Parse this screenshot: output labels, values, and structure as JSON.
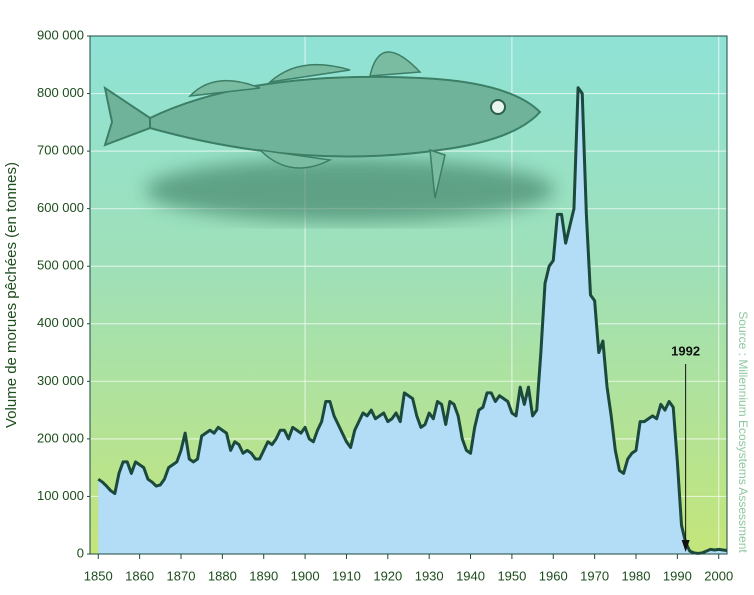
{
  "chart_data": {
    "type": "area",
    "y_label": "Volume de morues pêchées (en tonnes)",
    "source": "Source : Millennium Ecosystems Assessment",
    "annotation": {
      "x": 1992
    },
    "color": "#b3dcf6",
    "line_color": "#1b4a3c",
    "grid": true,
    "xlim": [
      1848,
      2002
    ],
    "ylim": [
      0,
      900000
    ],
    "xticks": [
      1850,
      1860,
      1870,
      1880,
      1890,
      1900,
      1910,
      1920,
      1930,
      1940,
      1950,
      1960,
      1970,
      1980,
      1990,
      2000
    ],
    "yticks": [
      0,
      {
        "value": 100000,
        "label": "100 000"
      },
      {
        "value": 200000,
        "label": "200 000"
      },
      {
        "value": 300000,
        "label": "300 000"
      },
      {
        "value": 400000,
        "label": "400 000"
      },
      {
        "value": 500000,
        "label": "500 000"
      },
      {
        "value": 600000,
        "label": "600 000"
      },
      {
        "value": 700000,
        "label": "700 000"
      },
      {
        "value": 800000,
        "label": "800 000"
      },
      {
        "value": 900000,
        "label": "900 000"
      }
    ],
    "x": [
      1850,
      1851,
      1852,
      1853,
      1854,
      1855,
      1856,
      1857,
      1858,
      1859,
      1860,
      1861,
      1862,
      1863,
      1864,
      1865,
      1866,
      1867,
      1868,
      1869,
      1870,
      1871,
      1872,
      1873,
      1874,
      1875,
      1876,
      1877,
      1878,
      1879,
      1880,
      1881,
      1882,
      1883,
      1884,
      1885,
      1886,
      1887,
      1888,
      1889,
      1890,
      1891,
      1892,
      1893,
      1894,
      1895,
      1896,
      1897,
      1898,
      1899,
      1900,
      1901,
      1902,
      1903,
      1904,
      1905,
      1906,
      1907,
      1908,
      1909,
      1910,
      1911,
      1912,
      1913,
      1914,
      1915,
      1916,
      1917,
      1918,
      1919,
      1920,
      1921,
      1922,
      1923,
      1924,
      1925,
      1926,
      1927,
      1928,
      1929,
      1930,
      1931,
      1932,
      1933,
      1934,
      1935,
      1936,
      1937,
      1938,
      1939,
      1940,
      1941,
      1942,
      1943,
      1944,
      1945,
      1946,
      1947,
      1948,
      1949,
      1950,
      1951,
      1952,
      1953,
      1954,
      1955,
      1956,
      1957,
      1958,
      1959,
      1960,
      1961,
      1962,
      1963,
      1964,
      1965,
      1966,
      1967,
      1968,
      1969,
      1970,
      1971,
      1972,
      1973,
      1974,
      1975,
      1976,
      1977,
      1978,
      1979,
      1980,
      1981,
      1982,
      1983,
      1984,
      1985,
      1986,
      1987,
      1988,
      1989,
      1990,
      1991,
      1992,
      1993,
      1994,
      1995,
      1996,
      1997,
      1998,
      1999,
      2000,
      2001,
      2002
    ],
    "values": [
      130000,
      125000,
      118000,
      110000,
      105000,
      140000,
      160000,
      160000,
      140000,
      160000,
      155000,
      150000,
      130000,
      125000,
      118000,
      120000,
      130000,
      150000,
      155000,
      160000,
      180000,
      210000,
      165000,
      160000,
      165000,
      205000,
      210000,
      215000,
      210000,
      220000,
      215000,
      210000,
      180000,
      195000,
      190000,
      175000,
      180000,
      175000,
      165000,
      165000,
      180000,
      195000,
      190000,
      200000,
      215000,
      215000,
      200000,
      220000,
      215000,
      210000,
      220000,
      200000,
      195000,
      215000,
      230000,
      265000,
      265000,
      240000,
      225000,
      210000,
      195000,
      185000,
      215000,
      230000,
      245000,
      240000,
      250000,
      235000,
      240000,
      245000,
      230000,
      235000,
      245000,
      230000,
      280000,
      275000,
      270000,
      240000,
      220000,
      225000,
      245000,
      235000,
      265000,
      260000,
      225000,
      265000,
      260000,
      240000,
      200000,
      180000,
      175000,
      220000,
      250000,
      255000,
      280000,
      280000,
      265000,
      275000,
      270000,
      265000,
      245000,
      240000,
      290000,
      260000,
      290000,
      240000,
      250000,
      350000,
      470000,
      500000,
      510000,
      590000,
      590000,
      540000,
      570000,
      600000,
      810000,
      800000,
      590000,
      450000,
      440000,
      350000,
      370000,
      290000,
      240000,
      180000,
      145000,
      140000,
      165000,
      175000,
      180000,
      230000,
      230000,
      235000,
      240000,
      235000,
      260000,
      250000,
      265000,
      255000,
      160000,
      50000,
      20000,
      5000,
      2000,
      1000,
      2000,
      5000,
      8000,
      7000,
      8000,
      7000,
      6000
    ]
  }
}
